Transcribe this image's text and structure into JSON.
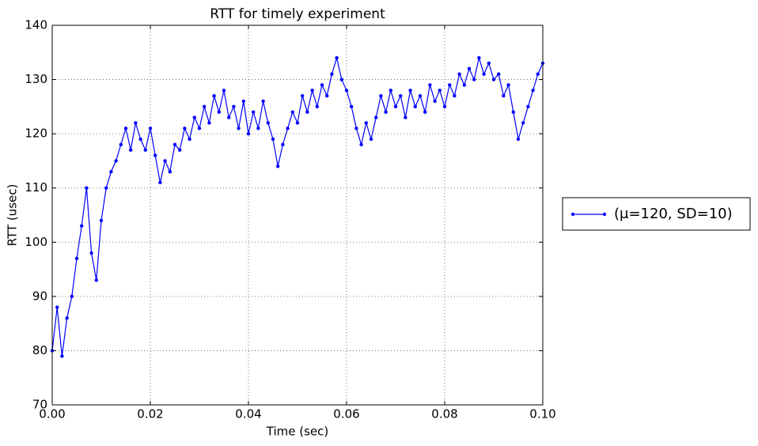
{
  "chart_data": {
    "type": "line",
    "title": "RTT for timely experiment",
    "x_label": "Time (sec)",
    "y_label": "RTT (usec)",
    "x": [
      0,
      0.001,
      0.002,
      0.003,
      0.004,
      0.005,
      0.006,
      0.007,
      0.008,
      0.009,
      0.01,
      0.011,
      0.012,
      0.013,
      0.014,
      0.015,
      0.016,
      0.017,
      0.018,
      0.019,
      0.02,
      0.021,
      0.022,
      0.023,
      0.024,
      0.025,
      0.026,
      0.027,
      0.028,
      0.029,
      0.03,
      0.031,
      0.032,
      0.033,
      0.034,
      0.035,
      0.036,
      0.037,
      0.038,
      0.039,
      0.04,
      0.041,
      0.042,
      0.043,
      0.044,
      0.045,
      0.046,
      0.047,
      0.048,
      0.049,
      0.05,
      0.051,
      0.052,
      0.053,
      0.054,
      0.055,
      0.056,
      0.057,
      0.058,
      0.059,
      0.06,
      0.061,
      0.062,
      0.063,
      0.064,
      0.065,
      0.066,
      0.067,
      0.068,
      0.069,
      0.07,
      0.071,
      0.072,
      0.073,
      0.074,
      0.075,
      0.076,
      0.077,
      0.078,
      0.079,
      0.08,
      0.081,
      0.082,
      0.083,
      0.084,
      0.085,
      0.086,
      0.087,
      0.088,
      0.089,
      0.09,
      0.091,
      0.092,
      0.093,
      0.094,
      0.095,
      0.096,
      0.097,
      0.098,
      0.099,
      0.1
    ],
    "series": [
      {
        "name": "(μ=120, SD=10)",
        "color": "#0000ff",
        "values": [
          80,
          88,
          79,
          86,
          90,
          97,
          103,
          110,
          98,
          93,
          104,
          110,
          113,
          115,
          118,
          121,
          117,
          122,
          119,
          117,
          121,
          116,
          111,
          115,
          113,
          118,
          117,
          121,
          119,
          123,
          121,
          125,
          122,
          127,
          124,
          128,
          123,
          125,
          121,
          126,
          120,
          124,
          121,
          126,
          122,
          119,
          114,
          118,
          121,
          124,
          122,
          127,
          124,
          128,
          125,
          129,
          127,
          131,
          134,
          130,
          128,
          125,
          121,
          118,
          122,
          119,
          123,
          127,
          124,
          128,
          125,
          127,
          123,
          128,
          125,
          127,
          124,
          129,
          126,
          128,
          125,
          129,
          127,
          131,
          129,
          132,
          130,
          134,
          131,
          133,
          130,
          131,
          127,
          129,
          124,
          119,
          122,
          125,
          128,
          131,
          133
        ]
      }
    ],
    "xlim": [
      0,
      0.1
    ],
    "xticks": [
      {
        "value": 0,
        "label": "0.00"
      },
      0.02,
      0.04,
      0.06,
      0.08,
      {
        "value": 0.1,
        "label": "0.10"
      }
    ],
    "ylim": [
      70,
      140
    ],
    "yticks": [
      70,
      80,
      90,
      100,
      110,
      120,
      130,
      140
    ],
    "grid": true,
    "legend": "outside right"
  }
}
